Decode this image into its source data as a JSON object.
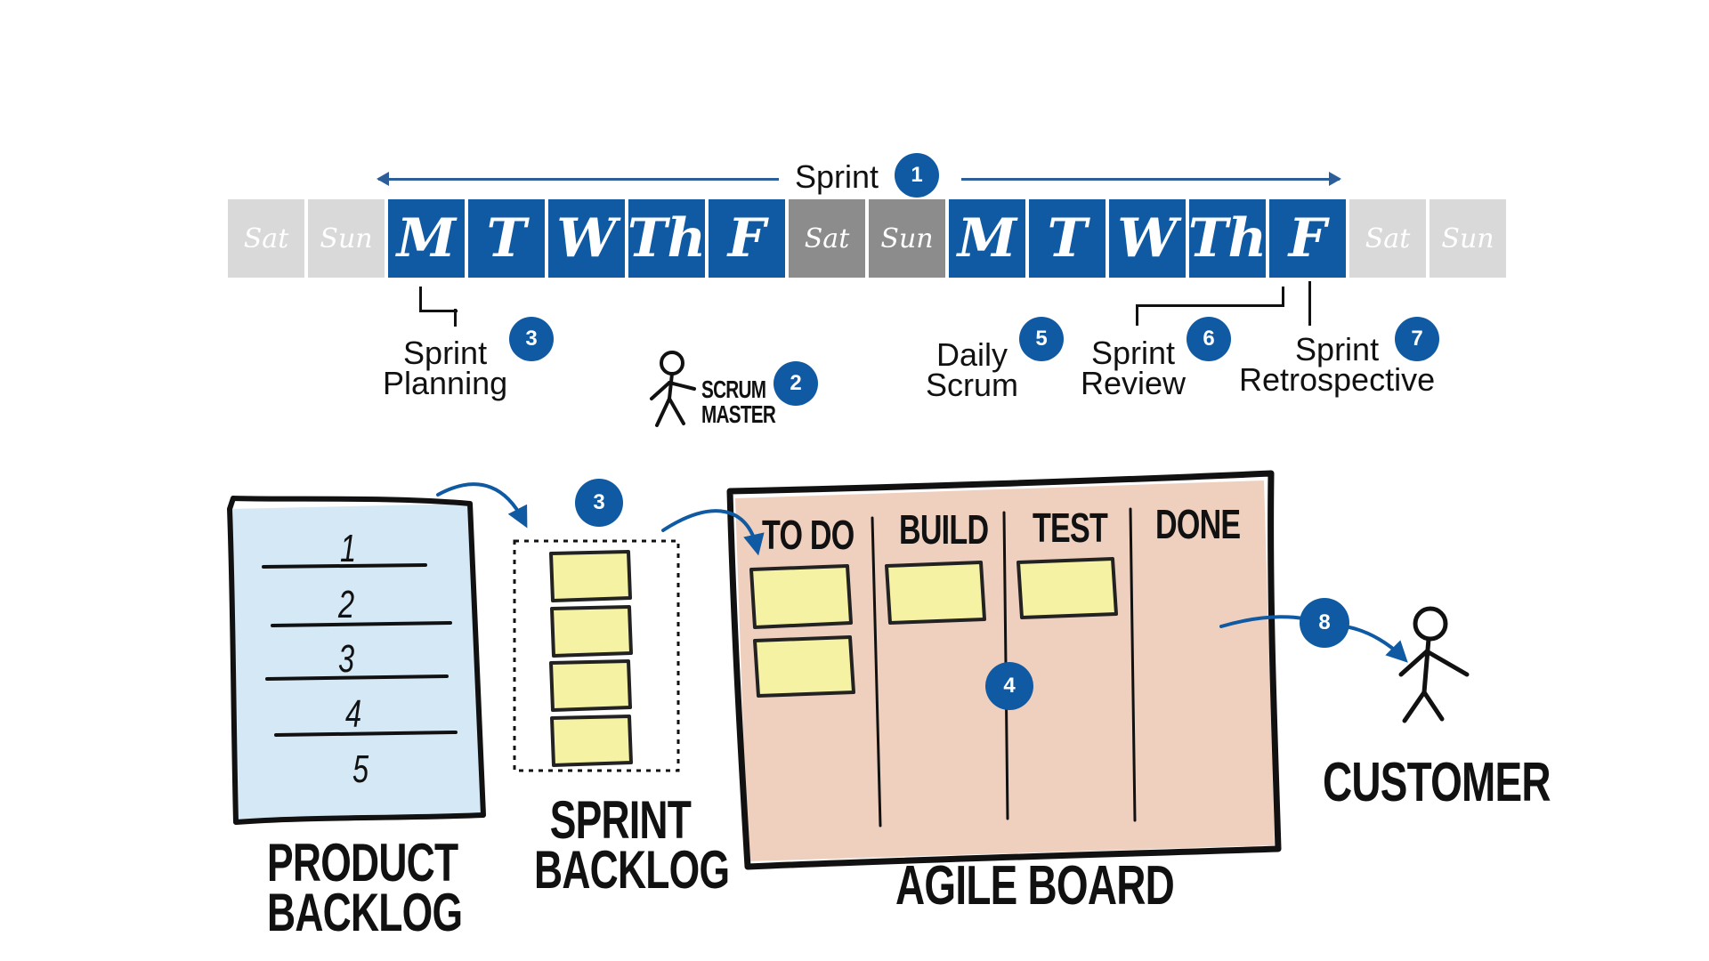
{
  "sprint": {
    "label": "Sprint",
    "badge": "1"
  },
  "days": [
    {
      "label": "Sat",
      "kind": "weekend-light"
    },
    {
      "label": "Sun",
      "kind": "weekend-light"
    },
    {
      "label": "M",
      "kind": "work"
    },
    {
      "label": "T",
      "kind": "work"
    },
    {
      "label": "W",
      "kind": "work"
    },
    {
      "label": "Th",
      "kind": "work"
    },
    {
      "label": "F",
      "kind": "work"
    },
    {
      "label": "Sat",
      "kind": "weekend-dark"
    },
    {
      "label": "Sun",
      "kind": "weekend-dark"
    },
    {
      "label": "M",
      "kind": "work"
    },
    {
      "label": "T",
      "kind": "work"
    },
    {
      "label": "W",
      "kind": "work"
    },
    {
      "label": "Th",
      "kind": "work"
    },
    {
      "label": "F",
      "kind": "work"
    },
    {
      "label": "Sat",
      "kind": "weekend-light"
    },
    {
      "label": "Sun",
      "kind": "weekend-light"
    }
  ],
  "events": {
    "sprint_planning": {
      "line1": "Sprint",
      "line2": "Planning",
      "badge": "3"
    },
    "scrum_master": {
      "line1": "SCRUM",
      "line2": "MASTER",
      "badge": "2"
    },
    "daily_scrum": {
      "line1": "Daily",
      "line2": "Scrum",
      "badge": "5"
    },
    "sprint_review": {
      "line1": "Sprint",
      "line2": "Review",
      "badge": "6"
    },
    "sprint_retro": {
      "line1": "Sprint",
      "line2": "Retrospective",
      "badge": "7"
    }
  },
  "product_backlog": {
    "line1": "PRODUCT",
    "line2": "BACKLOG",
    "items": [
      "1",
      "2",
      "3",
      "4",
      "5"
    ]
  },
  "sprint_backlog": {
    "line1": "SPRINT",
    "line2": "BACKLOG",
    "badge": "3"
  },
  "agile_board": {
    "title": "AGILE BOARD",
    "columns": [
      "TO DO",
      "BUILD",
      "TEST",
      "DONE"
    ],
    "badge": "4"
  },
  "customer": {
    "label": "CUSTOMER",
    "badge": "8"
  },
  "colors": {
    "accent": "#0f5aa3",
    "sticky": "#f6f2a3",
    "board_fill": "#ecc8b4",
    "backlog_fill": "#cfe6f5"
  }
}
